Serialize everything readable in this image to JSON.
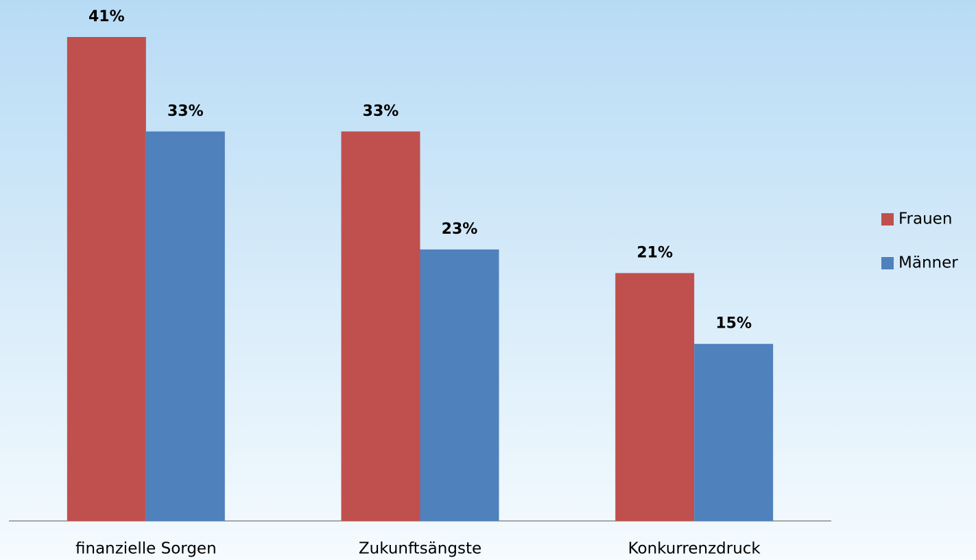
{
  "chart_data": {
    "type": "bar",
    "categories": [
      "finanzielle Sorgen",
      "Zukunftsängste",
      "Konkurrenzdruck"
    ],
    "series": [
      {
        "name": "Frauen",
        "color": "#c0504d",
        "values": [
          41,
          33,
          21
        ],
        "value_labels": [
          "41%",
          "33%",
          "21%"
        ]
      },
      {
        "name": "Männer",
        "color": "#4f81bd",
        "values": [
          33,
          23,
          15
        ],
        "value_labels": [
          "33%",
          "23%",
          "15%"
        ]
      }
    ],
    "legend": "right"
  }
}
